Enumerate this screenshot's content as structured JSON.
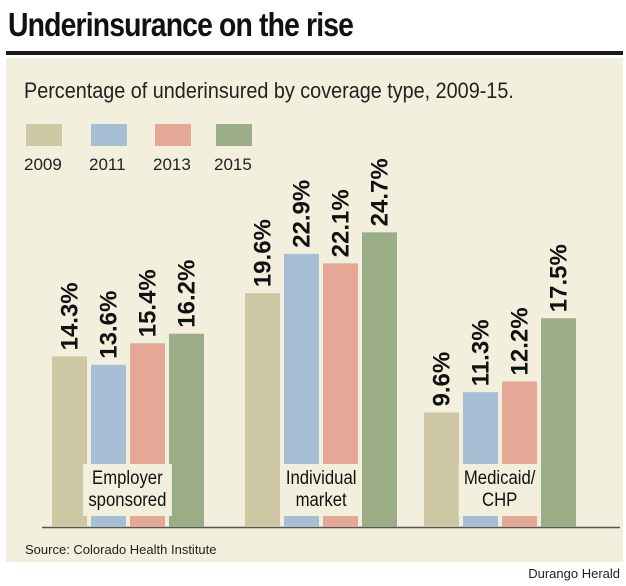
{
  "headline": "Underinsurance on the rise",
  "source": "Source: Colorado Health Institute",
  "credit": "Durango Herald",
  "colors": {
    "2009": "#cdc7a4",
    "2011": "#a7bfd5",
    "2013": "#e5a896",
    "2015": "#9bad86",
    "panel": "#f2efdd"
  },
  "chart_data": {
    "type": "bar",
    "title": "Percentage of underinsured by coverage type, 2009-15.",
    "categories": [
      "Employer sponsored",
      "Individual market",
      "Medicaid/ CHP"
    ],
    "category_lines": [
      [
        "Employer",
        "sponsored"
      ],
      [
        "Individual",
        "market"
      ],
      [
        "Medicaid/",
        "CHP"
      ]
    ],
    "series": [
      {
        "name": "2009",
        "values": [
          14.3,
          19.6,
          9.6
        ],
        "labels": [
          "14.3%",
          "19.6%",
          "9.6%"
        ]
      },
      {
        "name": "2011",
        "values": [
          13.6,
          22.9,
          11.3
        ],
        "labels": [
          "13.6%",
          "22.9%",
          "11.3%"
        ]
      },
      {
        "name": "2013",
        "values": [
          15.4,
          22.1,
          12.2
        ],
        "labels": [
          "15.4%",
          "22.1%",
          "12.2%"
        ]
      },
      {
        "name": "2015",
        "values": [
          16.2,
          24.7,
          17.5
        ],
        "labels": [
          "16.2%",
          "24.7%",
          "17.5%"
        ]
      }
    ],
    "ylim": [
      0,
      25
    ],
    "legend_position": "top-left",
    "grid": false
  }
}
